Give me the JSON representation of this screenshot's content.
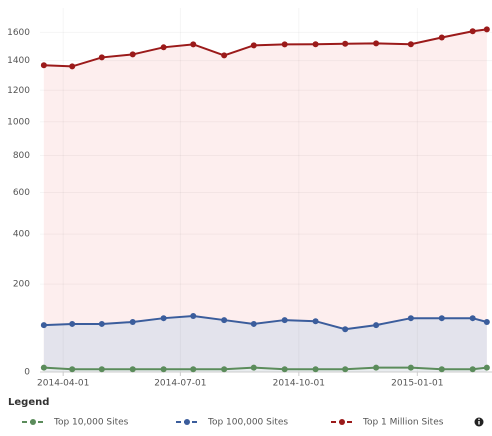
{
  "chart_data": {
    "type": "area",
    "x": [
      "2014-03-17",
      "2014-04-08",
      "2014-05-01",
      "2014-05-25",
      "2014-06-18",
      "2014-07-11",
      "2014-08-04",
      "2014-08-27",
      "2014-09-20",
      "2014-10-14",
      "2014-11-06",
      "2014-11-30",
      "2014-12-27",
      "2015-01-20",
      "2015-02-13",
      "2015-02-24"
    ],
    "series": [
      {
        "name": "Top 10,000 Sites",
        "color": "#5b8c5b",
        "fill": "#e9ecef",
        "values": [
          2,
          1,
          1,
          1,
          1,
          1,
          1,
          2,
          1,
          1,
          1,
          2,
          2,
          1,
          1,
          2
        ]
      },
      {
        "name": "Top 100,000 Sites",
        "color": "#3b5d9c",
        "fill": "#e3e3ec",
        "values": [
          76,
          79,
          79,
          84,
          94,
          100,
          89,
          79,
          89,
          86,
          66,
          76,
          94,
          94,
          94,
          84
        ]
      },
      {
        "name": "Top 1 Million Sites",
        "color": "#9b1a1a",
        "fill": "#fdeeee",
        "values": [
          1368,
          1360,
          1422,
          1443,
          1493,
          1514,
          1436,
          1507,
          1514,
          1515,
          1518,
          1521,
          1515,
          1563,
          1608,
          1622
        ]
      }
    ],
    "xlim": [
      "2014-03-14",
      "2015-02-28"
    ],
    "xticks": [
      "2014-04-01",
      "2014-07-01",
      "2014-10-01",
      "2015-01-01"
    ],
    "ylim": [
      0,
      1780
    ],
    "yticks": [
      0,
      200,
      400,
      600,
      800,
      1000,
      1200,
      1400,
      1600
    ],
    "y_scale": "pow",
    "y_exponent": 0.65,
    "grid": true,
    "legend_title": "Legend",
    "legend_position": "bottom"
  }
}
